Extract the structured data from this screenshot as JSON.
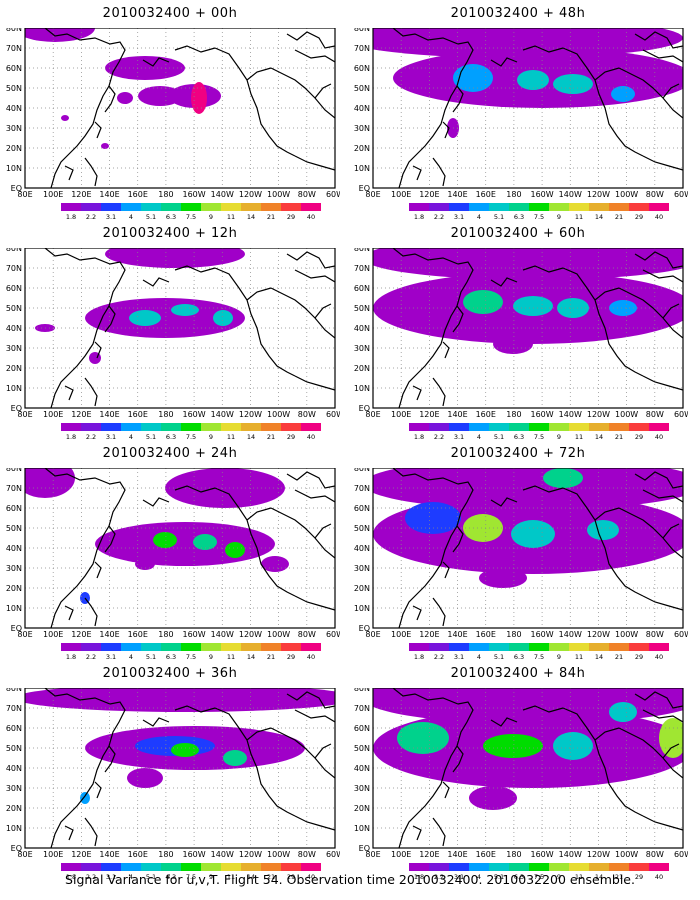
{
  "panels": [
    {
      "title": "2010032400 + 00h",
      "lead": 0
    },
    {
      "title": "2010032400 + 48h",
      "lead": 48
    },
    {
      "title": "2010032400 + 12h",
      "lead": 12
    },
    {
      "title": "2010032400 + 60h",
      "lead": 60
    },
    {
      "title": "2010032400 + 24h",
      "lead": 24
    },
    {
      "title": "2010032400 + 72h",
      "lead": 72
    },
    {
      "title": "2010032400 + 36h",
      "lead": 36
    },
    {
      "title": "2010032400 + 84h",
      "lead": 84
    }
  ],
  "lat_labels": [
    "80N",
    "70N",
    "60N",
    "50N",
    "40N",
    "30N",
    "20N",
    "10N",
    "EQ"
  ],
  "lon_labels": [
    "80E",
    "100E",
    "120E",
    "140E",
    "160E",
    "180",
    "160W",
    "140W",
    "120W",
    "100W",
    "80W",
    "60W"
  ],
  "colorbar": {
    "labels": [
      "1.8",
      "2.2",
      "3.1",
      "4",
      "5.1",
      "6.3",
      "7.5",
      "9",
      "11",
      "14",
      "21",
      "29",
      "40"
    ],
    "colors": [
      "#a000c8",
      "#7814dc",
      "#1e3cff",
      "#00a0ff",
      "#00c8c8",
      "#00d28c",
      "#00dc00",
      "#a0e632",
      "#e6dc32",
      "#e6af2d",
      "#f08228",
      "#fa3c3c",
      "#f00082"
    ]
  },
  "footer": "Signal Variance for u,v,T. Flight 54. Observation time 2010032400. 2010032200 ensemble."
}
